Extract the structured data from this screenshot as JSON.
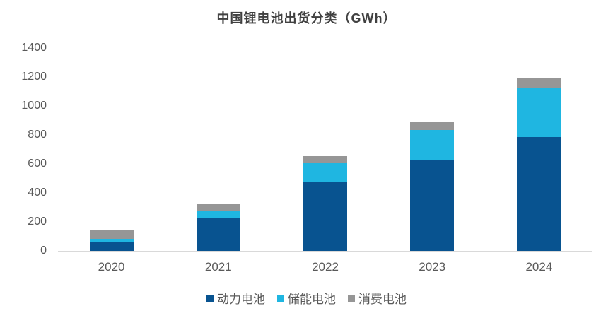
{
  "title": "中国锂电池出货分类（GWh）",
  "chart_data": {
    "type": "bar",
    "stacked": true,
    "title": "中国锂电池出货分类（GWh）",
    "categories": [
      "2020",
      "2021",
      "2022",
      "2023",
      "2024"
    ],
    "series": [
      {
        "name": "动力电池",
        "color": "#085390",
        "values": [
          65,
          225,
          480,
          625,
          785
        ]
      },
      {
        "name": "储能电池",
        "color": "#1FB6E1",
        "values": [
          20,
          48,
          130,
          210,
          340
        ]
      },
      {
        "name": "消费电池",
        "color": "#969696",
        "values": [
          55,
          52,
          45,
          55,
          70
        ]
      }
    ],
    "totals": [
      140,
      325,
      655,
      890,
      1195
    ],
    "ylabel": "",
    "xlabel": "",
    "ylim": [
      0,
      1400
    ],
    "yticks": [
      0,
      200,
      400,
      600,
      800,
      1000,
      1200,
      1400
    ],
    "grid": false,
    "legend_position": "bottom",
    "axis_line_color": "#D9D9D9",
    "tick_label_color": "#595959",
    "title_color": "#404040"
  }
}
